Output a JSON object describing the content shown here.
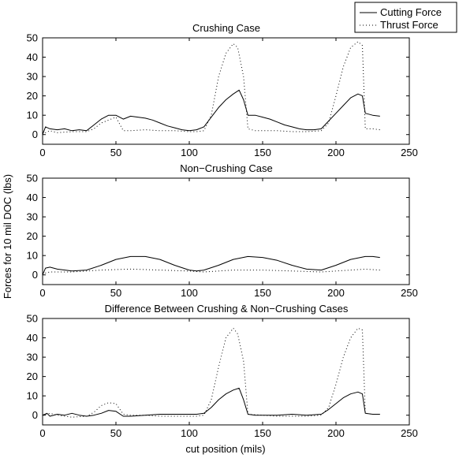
{
  "figure": {
    "ylabel": "Forces for 10 mil DOC (lbs)",
    "xlabel": "cut position (mils)",
    "legend": {
      "placement": "top-right",
      "entries": [
        {
          "label": "Cutting Force",
          "style": "solid"
        },
        {
          "label": "Thrust Force",
          "style": "dotted"
        }
      ]
    }
  },
  "chart_data": [
    {
      "type": "line",
      "title": "Crushing Case",
      "xlim": [
        0,
        250
      ],
      "ylim": [
        -5,
        50
      ],
      "xticks": [
        "0",
        "50",
        "100",
        "150",
        "200",
        "250"
      ],
      "yticks": [
        "0",
        "10",
        "20",
        "30",
        "40",
        "50"
      ],
      "series": [
        {
          "name": "Cutting Force",
          "style": "solid",
          "x": [
            0,
            2,
            5,
            10,
            15,
            20,
            25,
            30,
            35,
            40,
            45,
            50,
            55,
            60,
            65,
            70,
            75,
            80,
            85,
            90,
            95,
            100,
            105,
            110,
            115,
            120,
            125,
            130,
            134,
            137,
            140,
            145,
            150,
            155,
            160,
            165,
            170,
            175,
            180,
            185,
            190,
            195,
            200,
            205,
            210,
            215,
            218,
            220,
            225,
            230
          ],
          "y": [
            0,
            4,
            3,
            2.5,
            3,
            2,
            2.5,
            2,
            5,
            8,
            10,
            10,
            8,
            9.5,
            9,
            8.5,
            7.5,
            6,
            4.5,
            3.5,
            2.5,
            2,
            2.5,
            4,
            9,
            14,
            18,
            21,
            23,
            18,
            10,
            10,
            9,
            8,
            6.5,
            5,
            4,
            3,
            2.5,
            2.5,
            3,
            7,
            11,
            15,
            19,
            21,
            20,
            11,
            10,
            9.5
          ]
        },
        {
          "name": "Thrust Force",
          "style": "dotted",
          "x": [
            0,
            2,
            5,
            10,
            20,
            30,
            35,
            40,
            45,
            50,
            55,
            60,
            70,
            80,
            90,
            100,
            105,
            110,
            115,
            120,
            125,
            130,
            133,
            137,
            140,
            145,
            150,
            160,
            170,
            180,
            190,
            195,
            200,
            205,
            210,
            215,
            218,
            220,
            225,
            230
          ],
          "y": [
            0,
            1,
            2,
            1,
            1.5,
            1.5,
            3,
            6,
            7.5,
            9,
            2,
            2,
            2.5,
            2,
            2,
            1.5,
            1.5,
            2,
            10,
            30,
            42,
            47,
            45,
            30,
            3,
            2,
            2,
            2,
            1.5,
            1.5,
            2,
            6,
            20,
            35,
            45,
            48,
            46,
            3,
            3,
            2.5
          ]
        }
      ]
    },
    {
      "type": "line",
      "title": "Non−Crushing Case",
      "xlim": [
        0,
        250
      ],
      "ylim": [
        -5,
        50
      ],
      "xticks": [
        "0",
        "50",
        "100",
        "150",
        "200",
        "250"
      ],
      "yticks": [
        "0",
        "10",
        "20",
        "30",
        "40",
        "50"
      ],
      "series": [
        {
          "name": "Cutting Force",
          "style": "solid",
          "x": [
            0,
            2,
            5,
            10,
            20,
            30,
            40,
            50,
            60,
            70,
            80,
            90,
            100,
            105,
            110,
            120,
            130,
            140,
            150,
            160,
            170,
            180,
            190,
            200,
            210,
            220,
            225,
            230
          ],
          "y": [
            0,
            3.5,
            4,
            3,
            2,
            2.5,
            5,
            8,
            9.5,
            9.5,
            8,
            5,
            2.5,
            2,
            2.5,
            5,
            8,
            9.5,
            9,
            7.5,
            5,
            3,
            2.5,
            5,
            8,
            9.5,
            9.5,
            9
          ]
        },
        {
          "name": "Thrust Force",
          "style": "dotted",
          "x": [
            0,
            2,
            5,
            20,
            40,
            60,
            80,
            100,
            110,
            130,
            150,
            170,
            190,
            210,
            220,
            230
          ],
          "y": [
            0,
            1,
            1.5,
            1.5,
            2.5,
            3,
            2.5,
            2,
            1.5,
            2.5,
            2.5,
            2,
            1.5,
            2.5,
            3,
            2.5
          ]
        }
      ]
    },
    {
      "type": "line",
      "title": "Difference Between Crushing & Non−Crushing Cases",
      "xlim": [
        0,
        250
      ],
      "ylim": [
        -5,
        50
      ],
      "xticks": [
        "0",
        "50",
        "100",
        "150",
        "200",
        "250"
      ],
      "yticks": [
        "0",
        "10",
        "20",
        "30",
        "40",
        "50"
      ],
      "series": [
        {
          "name": "Cutting Force",
          "style": "solid",
          "x": [
            0,
            3,
            5,
            10,
            15,
            20,
            25,
            30,
            35,
            40,
            45,
            50,
            55,
            60,
            70,
            80,
            90,
            100,
            105,
            110,
            115,
            120,
            125,
            130,
            134,
            137,
            140,
            145,
            150,
            160,
            170,
            180,
            190,
            195,
            200,
            205,
            210,
            215,
            218,
            220,
            225,
            230
          ],
          "y": [
            0,
            1,
            -0.5,
            0.5,
            0,
            1,
            0,
            -0.5,
            0,
            1,
            2.5,
            2,
            -0.5,
            -0.5,
            0,
            0.5,
            0.5,
            0.5,
            0.5,
            1,
            4,
            8,
            11,
            13,
            14,
            8,
            0.5,
            0,
            0,
            0,
            0.5,
            0,
            0.5,
            3,
            6,
            9,
            11,
            12,
            11,
            1,
            0.5,
            0.5
          ]
        },
        {
          "name": "Thrust Force",
          "style": "dotted",
          "x": [
            0,
            5,
            10,
            20,
            30,
            35,
            40,
            45,
            50,
            55,
            60,
            70,
            80,
            90,
            100,
            105,
            110,
            115,
            120,
            125,
            130,
            133,
            137,
            140,
            150,
            160,
            170,
            180,
            190,
            195,
            200,
            205,
            210,
            215,
            218,
            220,
            225,
            230
          ],
          "y": [
            0,
            1,
            0,
            -1,
            -0.5,
            1.5,
            5,
            6.5,
            6,
            0.5,
            0,
            0,
            -0.5,
            -0.5,
            -0.5,
            -0.5,
            0,
            8,
            25,
            40,
            45,
            42,
            28,
            0.5,
            0,
            -0.5,
            -0.5,
            -0.5,
            0,
            4,
            16,
            30,
            40,
            45,
            44,
            1,
            0.5,
            0.5
          ]
        }
      ]
    }
  ]
}
